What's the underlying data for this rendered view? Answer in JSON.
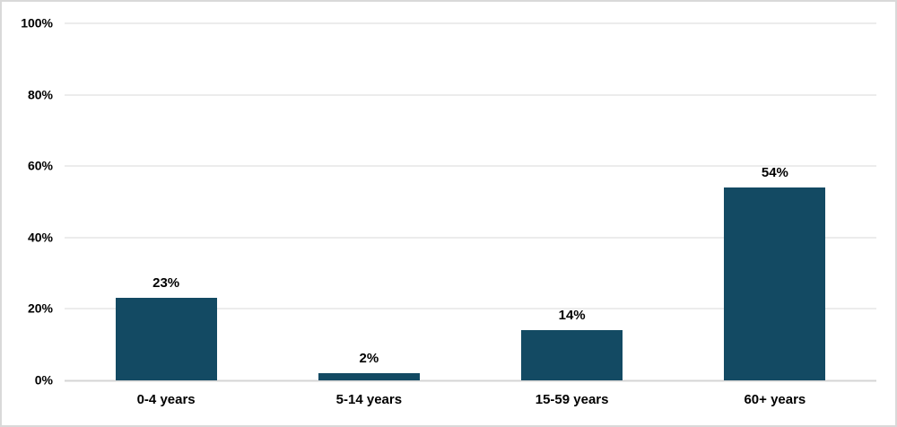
{
  "chart_data": {
    "type": "bar",
    "title": "",
    "xlabel": "",
    "ylabel": "",
    "categories": [
      "0-4 years",
      "5-14 years",
      "15-59 years",
      "60+ years"
    ],
    "values": [
      23,
      2,
      14,
      54
    ],
    "data_labels": [
      "23%",
      "2%",
      "14%",
      "54%"
    ],
    "ylim": [
      0,
      100
    ],
    "yticks": [
      0,
      20,
      40,
      60,
      80,
      100
    ],
    "ytick_labels": [
      "0%",
      "20%",
      "40%",
      "60%",
      "80%",
      "100%"
    ],
    "grid": "horizontal-only",
    "legend": "none",
    "colors": {
      "bar_fill": "#134a63",
      "gridline": "#d9d9d9",
      "baseline": "#d4d4d4",
      "frame_border": "#d9d9d9",
      "text": "#000000",
      "background": "#ffffff"
    }
  }
}
